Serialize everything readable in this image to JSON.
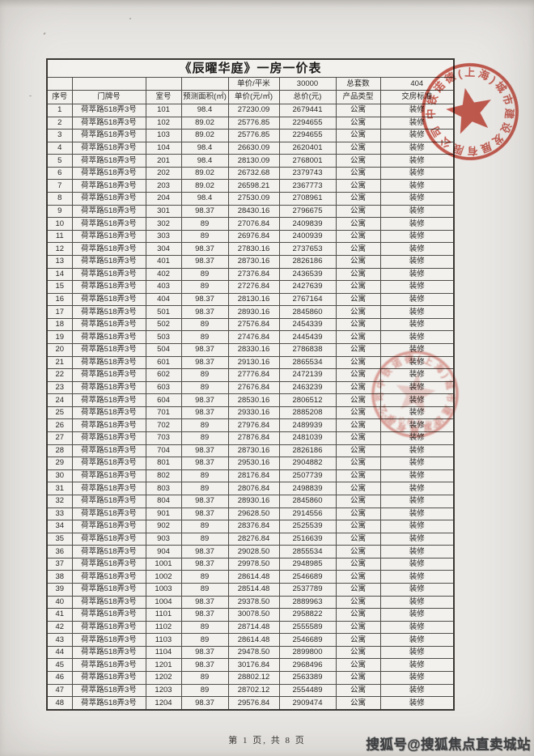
{
  "page": {
    "footer": "第 1 页, 共 8 页",
    "watermark": "搜狐号@搜狐焦点直卖城站"
  },
  "table": {
    "title": "《辰曜华庭》一房一价表",
    "info_cells": [
      "",
      "",
      "",
      "",
      "单价/平米",
      "30000",
      "总套数",
      "404"
    ],
    "headers": [
      "序号",
      "门牌号",
      "室号",
      "预测面积(㎡)",
      "单价(元/㎡)",
      "总价(元)",
      "产品类型",
      "交房标准"
    ],
    "rows": [
      [
        "1",
        "荷萃路518弄3号",
        "101",
        "98.4",
        "27230.09",
        "2679441",
        "公寓",
        "装修"
      ],
      [
        "2",
        "荷萃路518弄3号",
        "102",
        "89.02",
        "25776.85",
        "2294655",
        "公寓",
        "装修"
      ],
      [
        "3",
        "荷萃路518弄3号",
        "103",
        "89.02",
        "25776.85",
        "2294655",
        "公寓",
        "装修"
      ],
      [
        "4",
        "荷萃路518弄3号",
        "104",
        "98.4",
        "26630.09",
        "2620401",
        "公寓",
        "装修"
      ],
      [
        "5",
        "荷萃路518弄3号",
        "201",
        "98.4",
        "28130.09",
        "2768001",
        "公寓",
        "装修"
      ],
      [
        "6",
        "荷萃路518弄3号",
        "202",
        "89.02",
        "26732.68",
        "2379743",
        "公寓",
        "装修"
      ],
      [
        "7",
        "荷萃路518弄3号",
        "203",
        "89.02",
        "26598.21",
        "2367773",
        "公寓",
        "装修"
      ],
      [
        "8",
        "荷萃路518弄3号",
        "204",
        "98.4",
        "27530.09",
        "2708961",
        "公寓",
        "装修"
      ],
      [
        "9",
        "荷萃路518弄3号",
        "301",
        "98.37",
        "28430.16",
        "2796675",
        "公寓",
        "装修"
      ],
      [
        "10",
        "荷萃路518弄3号",
        "302",
        "89",
        "27076.84",
        "2409839",
        "公寓",
        "装修"
      ],
      [
        "11",
        "荷萃路518弄3号",
        "303",
        "89",
        "26976.84",
        "2400939",
        "公寓",
        "装修"
      ],
      [
        "12",
        "荷萃路518弄3号",
        "304",
        "98.37",
        "27830.16",
        "2737653",
        "公寓",
        "装修"
      ],
      [
        "13",
        "荷萃路518弄3号",
        "401",
        "98.37",
        "28730.16",
        "2826186",
        "公寓",
        "装修"
      ],
      [
        "14",
        "荷萃路518弄3号",
        "402",
        "89",
        "27376.84",
        "2436539",
        "公寓",
        "装修"
      ],
      [
        "15",
        "荷萃路518弄3号",
        "403",
        "89",
        "27276.84",
        "2427639",
        "公寓",
        "装修"
      ],
      [
        "16",
        "荷萃路518弄3号",
        "404",
        "98.37",
        "28130.16",
        "2767164",
        "公寓",
        "装修"
      ],
      [
        "17",
        "荷萃路518弄3号",
        "501",
        "98.37",
        "28930.16",
        "2845860",
        "公寓",
        "装修"
      ],
      [
        "18",
        "荷萃路518弄3号",
        "502",
        "89",
        "27576.84",
        "2454339",
        "公寓",
        "装修"
      ],
      [
        "19",
        "荷萃路518弄3号",
        "503",
        "89",
        "27476.84",
        "2445439",
        "公寓",
        "装修"
      ],
      [
        "20",
        "荷萃路518弄3号",
        "504",
        "98.37",
        "28330.16",
        "2786838",
        "公寓",
        "装修"
      ],
      [
        "21",
        "荷萃路518弄3号",
        "601",
        "98.37",
        "29130.16",
        "2865534",
        "公寓",
        "装修"
      ],
      [
        "22",
        "荷萃路518弄3号",
        "602",
        "89",
        "27776.84",
        "2472139",
        "公寓",
        "装修"
      ],
      [
        "23",
        "荷萃路518弄3号",
        "603",
        "89",
        "27676.84",
        "2463239",
        "公寓",
        "装修"
      ],
      [
        "24",
        "荷萃路518弄3号",
        "604",
        "98.37",
        "28530.16",
        "2806512",
        "公寓",
        "装修"
      ],
      [
        "25",
        "荷萃路518弄3号",
        "701",
        "98.37",
        "29330.16",
        "2885208",
        "公寓",
        "装修"
      ],
      [
        "26",
        "荷萃路518弄3号",
        "702",
        "89",
        "27976.84",
        "2489939",
        "公寓",
        "装修"
      ],
      [
        "27",
        "荷萃路518弄3号",
        "703",
        "89",
        "27876.84",
        "2481039",
        "公寓",
        "装修"
      ],
      [
        "28",
        "荷萃路518弄3号",
        "704",
        "98.37",
        "28730.16",
        "2826186",
        "公寓",
        "装修"
      ],
      [
        "29",
        "荷萃路518弄3号",
        "801",
        "98.37",
        "29530.16",
        "2904882",
        "公寓",
        "装修"
      ],
      [
        "30",
        "荷萃路518弄3号",
        "802",
        "89",
        "28176.84",
        "2507739",
        "公寓",
        "装修"
      ],
      [
        "31",
        "荷萃路518弄3号",
        "803",
        "89",
        "28076.84",
        "2498839",
        "公寓",
        "装修"
      ],
      [
        "32",
        "荷萃路518弄3号",
        "804",
        "98.37",
        "28930.16",
        "2845860",
        "公寓",
        "装修"
      ],
      [
        "33",
        "荷萃路518弄3号",
        "901",
        "98.37",
        "29628.50",
        "2914556",
        "公寓",
        "装修"
      ],
      [
        "34",
        "荷萃路518弄3号",
        "902",
        "89",
        "28376.84",
        "2525539",
        "公寓",
        "装修"
      ],
      [
        "35",
        "荷萃路518弄3号",
        "903",
        "89",
        "28276.84",
        "2516639",
        "公寓",
        "装修"
      ],
      [
        "36",
        "荷萃路518弄3号",
        "904",
        "98.37",
        "29028.50",
        "2855534",
        "公寓",
        "装修"
      ],
      [
        "37",
        "荷萃路518弄3号",
        "1001",
        "98.37",
        "29978.50",
        "2948985",
        "公寓",
        "装修"
      ],
      [
        "38",
        "荷萃路518弄3号",
        "1002",
        "89",
        "28614.48",
        "2546689",
        "公寓",
        "装修"
      ],
      [
        "39",
        "荷萃路518弄3号",
        "1003",
        "89",
        "28514.48",
        "2537789",
        "公寓",
        "装修"
      ],
      [
        "40",
        "荷萃路518弄3号",
        "1004",
        "98.37",
        "29378.50",
        "2889963",
        "公寓",
        "装修"
      ],
      [
        "41",
        "荷萃路518弄3号",
        "1101",
        "98.37",
        "30078.50",
        "2958822",
        "公寓",
        "装修"
      ],
      [
        "42",
        "荷萃路518弄3号",
        "1102",
        "89",
        "28714.48",
        "2555589",
        "公寓",
        "装修"
      ],
      [
        "43",
        "荷萃路518弄3号",
        "1103",
        "89",
        "28614.48",
        "2546689",
        "公寓",
        "装修"
      ],
      [
        "44",
        "荷萃路518弄3号",
        "1104",
        "98.37",
        "29478.50",
        "2899800",
        "公寓",
        "装修"
      ],
      [
        "45",
        "荷萃路518弄3号",
        "1201",
        "98.37",
        "30176.84",
        "2968496",
        "公寓",
        "装修"
      ],
      [
        "46",
        "荷萃路518弄3号",
        "1202",
        "89",
        "28802.12",
        "2563389",
        "公寓",
        "装修"
      ],
      [
        "47",
        "荷萃路518弄3号",
        "1203",
        "89",
        "28702.12",
        "2554489",
        "公寓",
        "装修"
      ],
      [
        "48",
        "荷萃路518弄3号",
        "1204",
        "98.37",
        "29576.84",
        "2909474",
        "公寓",
        "装修"
      ]
    ]
  },
  "stamps": {
    "primary": {
      "arc_text": "中铁诺德(上海)城市建设发展有限公司"
    },
    "secondary": {
      "arc_text": "中铁诺德(上海)城市建设发展有限公司",
      "subtitle": "住房价格专用章"
    }
  },
  "colors": {
    "stamp_red": "#c84b3e",
    "paper": "#eae8e5",
    "ink": "#2a2826",
    "watermark_ink": "#3c3e41"
  }
}
